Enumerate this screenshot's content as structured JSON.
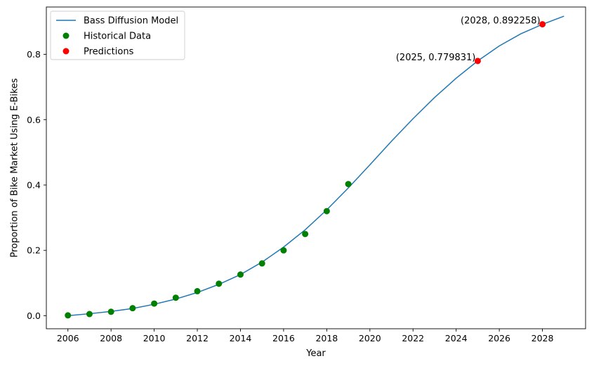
{
  "chart_data": {
    "type": "line",
    "xlabel": "Year",
    "ylabel": "Proportion of Bike Market Using E-Bikes",
    "xlim": [
      2005,
      2030
    ],
    "ylim": [
      -0.04,
      0.945
    ],
    "xticks": [
      2006,
      2008,
      2010,
      2012,
      2014,
      2016,
      2018,
      2020,
      2022,
      2024,
      2026,
      2028
    ],
    "yticks": [
      0.0,
      0.2,
      0.4,
      0.6,
      0.8
    ],
    "ytick_labels": [
      "0.0",
      "0.2",
      "0.4",
      "0.6",
      "0.8"
    ],
    "grid": false,
    "legend_position": "top-left",
    "series": [
      {
        "name": "Bass Diffusion Model",
        "kind": "line",
        "color": "#1f77b4",
        "x": [
          2006,
          2007,
          2008,
          2009,
          2010,
          2011,
          2012,
          2013,
          2014,
          2015,
          2016,
          2017,
          2018,
          2019,
          2020,
          2021,
          2022,
          2023,
          2024,
          2025,
          2026,
          2027,
          2028,
          2029
        ],
        "y": [
          0.0,
          0.006,
          0.013,
          0.022,
          0.035,
          0.051,
          0.071,
          0.096,
          0.126,
          0.164,
          0.21,
          0.263,
          0.324,
          0.391,
          0.462,
          0.534,
          0.603,
          0.668,
          0.727,
          0.78,
          0.826,
          0.863,
          0.892,
          0.917
        ]
      },
      {
        "name": "Historical Data",
        "kind": "scatter",
        "color": "#008000",
        "x": [
          2006,
          2007,
          2008,
          2009,
          2010,
          2011,
          2012,
          2013,
          2014,
          2015,
          2016,
          2017,
          2018,
          2019
        ],
        "y": [
          0.001,
          0.005,
          0.012,
          0.023,
          0.037,
          0.055,
          0.075,
          0.098,
          0.126,
          0.16,
          0.2,
          0.25,
          0.32,
          0.403
        ]
      },
      {
        "name": "Predictions",
        "kind": "scatter",
        "color": "#ff0000",
        "x": [
          2025,
          2028
        ],
        "y": [
          0.779831,
          0.892258
        ]
      }
    ],
    "annotations": [
      {
        "text": "(2025, 0.779831)",
        "x": 2025,
        "y": 0.779831
      },
      {
        "text": "(2028, 0.892258)",
        "x": 2028,
        "y": 0.892258
      }
    ]
  }
}
